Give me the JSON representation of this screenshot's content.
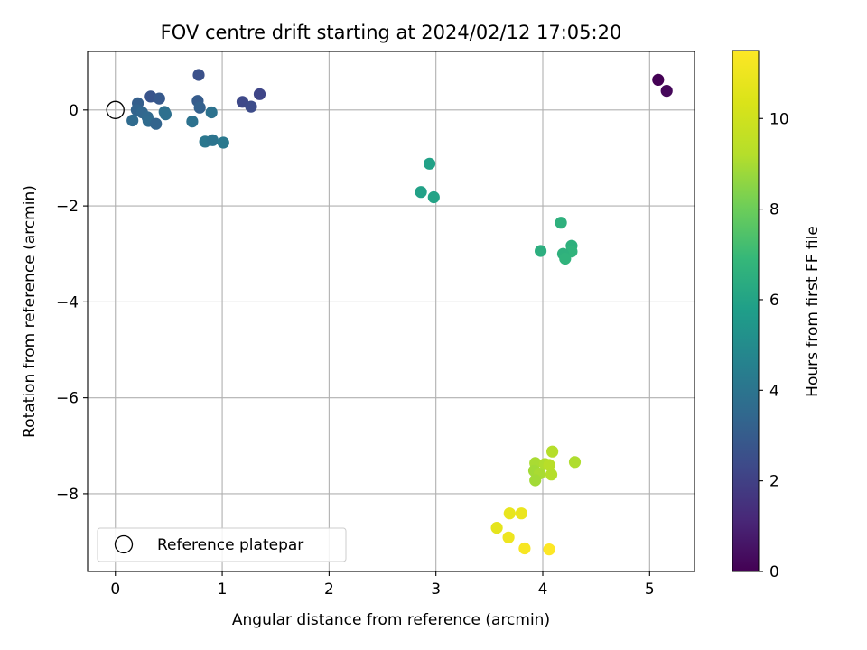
{
  "chart_data": {
    "type": "scatter",
    "title": "FOV centre drift starting at 2024/02/12 17:05:20",
    "xlabel": "Angular distance from reference (arcmin)",
    "ylabel": "Rotation from reference (arcmin)",
    "xlim": [
      -0.26,
      5.42
    ],
    "ylim": [
      -9.62,
      1.22
    ],
    "xticks": [
      0,
      1,
      2,
      3,
      4,
      5
    ],
    "yticks": [
      0,
      -2,
      -4,
      -6,
      -8
    ],
    "grid": true,
    "legend": {
      "placement": "lower-left",
      "entries": [
        "Reference platepar"
      ]
    },
    "reference_point": {
      "x": 0,
      "y": 0
    },
    "colorbar": {
      "label": "Hours from first FF file",
      "colormap": "viridis",
      "range": [
        0,
        11.5
      ],
      "ticks": [
        0,
        2,
        4,
        6,
        8,
        10
      ]
    },
    "points": [
      {
        "x": 5.08,
        "y": 0.63,
        "hours": 0.0
      },
      {
        "x": 5.16,
        "y": 0.4,
        "hours": 0.2
      },
      {
        "x": 0.78,
        "y": 0.73,
        "hours": 2.6
      },
      {
        "x": 1.35,
        "y": 0.33,
        "hours": 2.2
      },
      {
        "x": 1.19,
        "y": 0.17,
        "hours": 2.3
      },
      {
        "x": 1.27,
        "y": 0.07,
        "hours": 2.4
      },
      {
        "x": 0.33,
        "y": 0.28,
        "hours": 2.7
      },
      {
        "x": 0.41,
        "y": 0.24,
        "hours": 2.9
      },
      {
        "x": 0.21,
        "y": 0.14,
        "hours": 3.1
      },
      {
        "x": 0.77,
        "y": 0.19,
        "hours": 3.0
      },
      {
        "x": 0.79,
        "y": 0.05,
        "hours": 3.2
      },
      {
        "x": 0.2,
        "y": 0.0,
        "hours": 3.3
      },
      {
        "x": 0.25,
        "y": -0.05,
        "hours": 3.4
      },
      {
        "x": 0.3,
        "y": -0.15,
        "hours": 3.5
      },
      {
        "x": 0.31,
        "y": -0.23,
        "hours": 3.6
      },
      {
        "x": 0.16,
        "y": -0.22,
        "hours": 3.6
      },
      {
        "x": 0.38,
        "y": -0.29,
        "hours": 3.3
      },
      {
        "x": 0.46,
        "y": -0.04,
        "hours": 3.8
      },
      {
        "x": 0.47,
        "y": -0.09,
        "hours": 3.8
      },
      {
        "x": 0.72,
        "y": -0.24,
        "hours": 3.9
      },
      {
        "x": 0.9,
        "y": -0.05,
        "hours": 3.9
      },
      {
        "x": 0.84,
        "y": -0.66,
        "hours": 4.1
      },
      {
        "x": 0.91,
        "y": -0.63,
        "hours": 4.0
      },
      {
        "x": 1.01,
        "y": -0.68,
        "hours": 4.2
      },
      {
        "x": 2.94,
        "y": -1.12,
        "hours": 5.9
      },
      {
        "x": 2.86,
        "y": -1.71,
        "hours": 5.9
      },
      {
        "x": 2.98,
        "y": -1.82,
        "hours": 6.0
      },
      {
        "x": 4.17,
        "y": -2.35,
        "hours": 6.6
      },
      {
        "x": 3.98,
        "y": -2.94,
        "hours": 6.5
      },
      {
        "x": 4.27,
        "y": -2.83,
        "hours": 6.6
      },
      {
        "x": 4.27,
        "y": -2.95,
        "hours": 6.7
      },
      {
        "x": 4.19,
        "y": -3.0,
        "hours": 6.6
      },
      {
        "x": 4.21,
        "y": -3.1,
        "hours": 6.7
      },
      {
        "x": 4.09,
        "y": -7.12,
        "hours": 9.2
      },
      {
        "x": 4.3,
        "y": -7.34,
        "hours": 9.1
      },
      {
        "x": 3.93,
        "y": -7.36,
        "hours": 9.0
      },
      {
        "x": 4.02,
        "y": -7.38,
        "hours": 9.1
      },
      {
        "x": 4.06,
        "y": -7.4,
        "hours": 9.3
      },
      {
        "x": 3.92,
        "y": -7.52,
        "hours": 8.9
      },
      {
        "x": 3.97,
        "y": -7.58,
        "hours": 9.0
      },
      {
        "x": 4.08,
        "y": -7.6,
        "hours": 9.2
      },
      {
        "x": 3.93,
        "y": -7.72,
        "hours": 8.9
      },
      {
        "x": 3.69,
        "y": -8.41,
        "hours": 10.8
      },
      {
        "x": 3.8,
        "y": -8.41,
        "hours": 10.9
      },
      {
        "x": 3.57,
        "y": -8.71,
        "hours": 10.7
      },
      {
        "x": 3.68,
        "y": -8.91,
        "hours": 11.0
      },
      {
        "x": 3.83,
        "y": -9.14,
        "hours": 11.3
      },
      {
        "x": 4.06,
        "y": -9.16,
        "hours": 11.5
      }
    ]
  }
}
